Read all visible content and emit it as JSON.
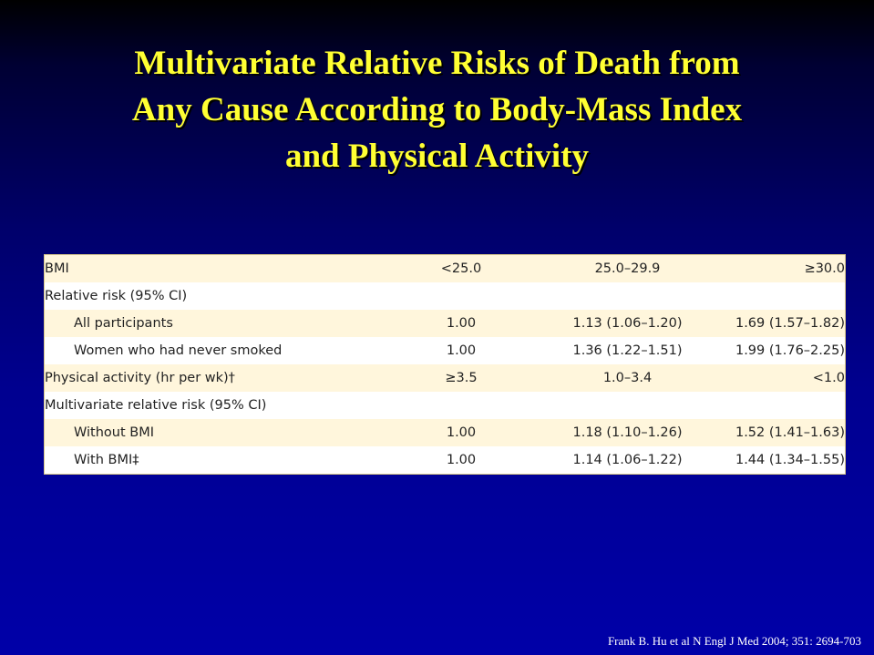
{
  "slide": {
    "title_lines": [
      "Multivariate Relative Risks of Death from",
      "Any Cause According to Body-Mass Index",
      "and Physical Activity"
    ],
    "citation": "Frank B. Hu et al N Engl J Med 2004; 351: 2694-703"
  },
  "table": {
    "rows": [
      {
        "label": "BMI",
        "c1": "<25.0",
        "c2": "25.0–29.9",
        "c3": "≥30.0"
      },
      {
        "label": "Relative risk (95% CI)",
        "c1": "",
        "c2": "",
        "c3": ""
      },
      {
        "label": "All participants",
        "c1": "1.00",
        "c2": "1.13 (1.06–1.20)",
        "c3": "1.69 (1.57–1.82)"
      },
      {
        "label": "Women who had never smoked",
        "c1": "1.00",
        "c2": "1.36 (1.22–1.51)",
        "c3": "1.99 (1.76–2.25)"
      },
      {
        "label": "Physical activity (hr per wk)†",
        "c1": "≥3.5",
        "c2": "1.0–3.4",
        "c3": "<1.0"
      },
      {
        "label": "Multivariate relative risk (95% CI)",
        "c1": "",
        "c2": "",
        "c3": ""
      },
      {
        "label": "Without BMI",
        "c1": "1.00",
        "c2": "1.18 (1.10–1.26)",
        "c3": "1.52 (1.41–1.63)"
      },
      {
        "label": "With BMI‡",
        "c1": "1.00",
        "c2": "1.14 (1.06–1.22)",
        "c3": "1.44 (1.34–1.55)"
      }
    ]
  }
}
